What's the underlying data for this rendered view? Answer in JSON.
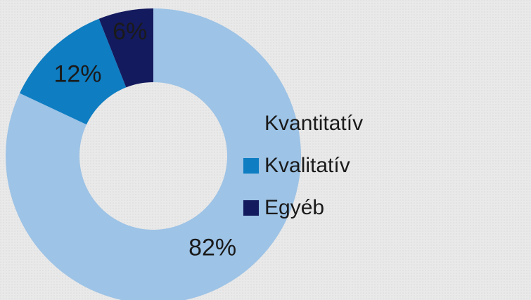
{
  "chart_data": {
    "type": "donut",
    "categories": [
      "Kvantitatív",
      "Kvalitatív",
      "Egyéb"
    ],
    "values": [
      82,
      12,
      6
    ],
    "value_labels": [
      "82%",
      "12%",
      "6%"
    ],
    "colors": [
      "#9dc3e6",
      "#0e7dc2",
      "#141a5e"
    ],
    "legend": "right"
  }
}
